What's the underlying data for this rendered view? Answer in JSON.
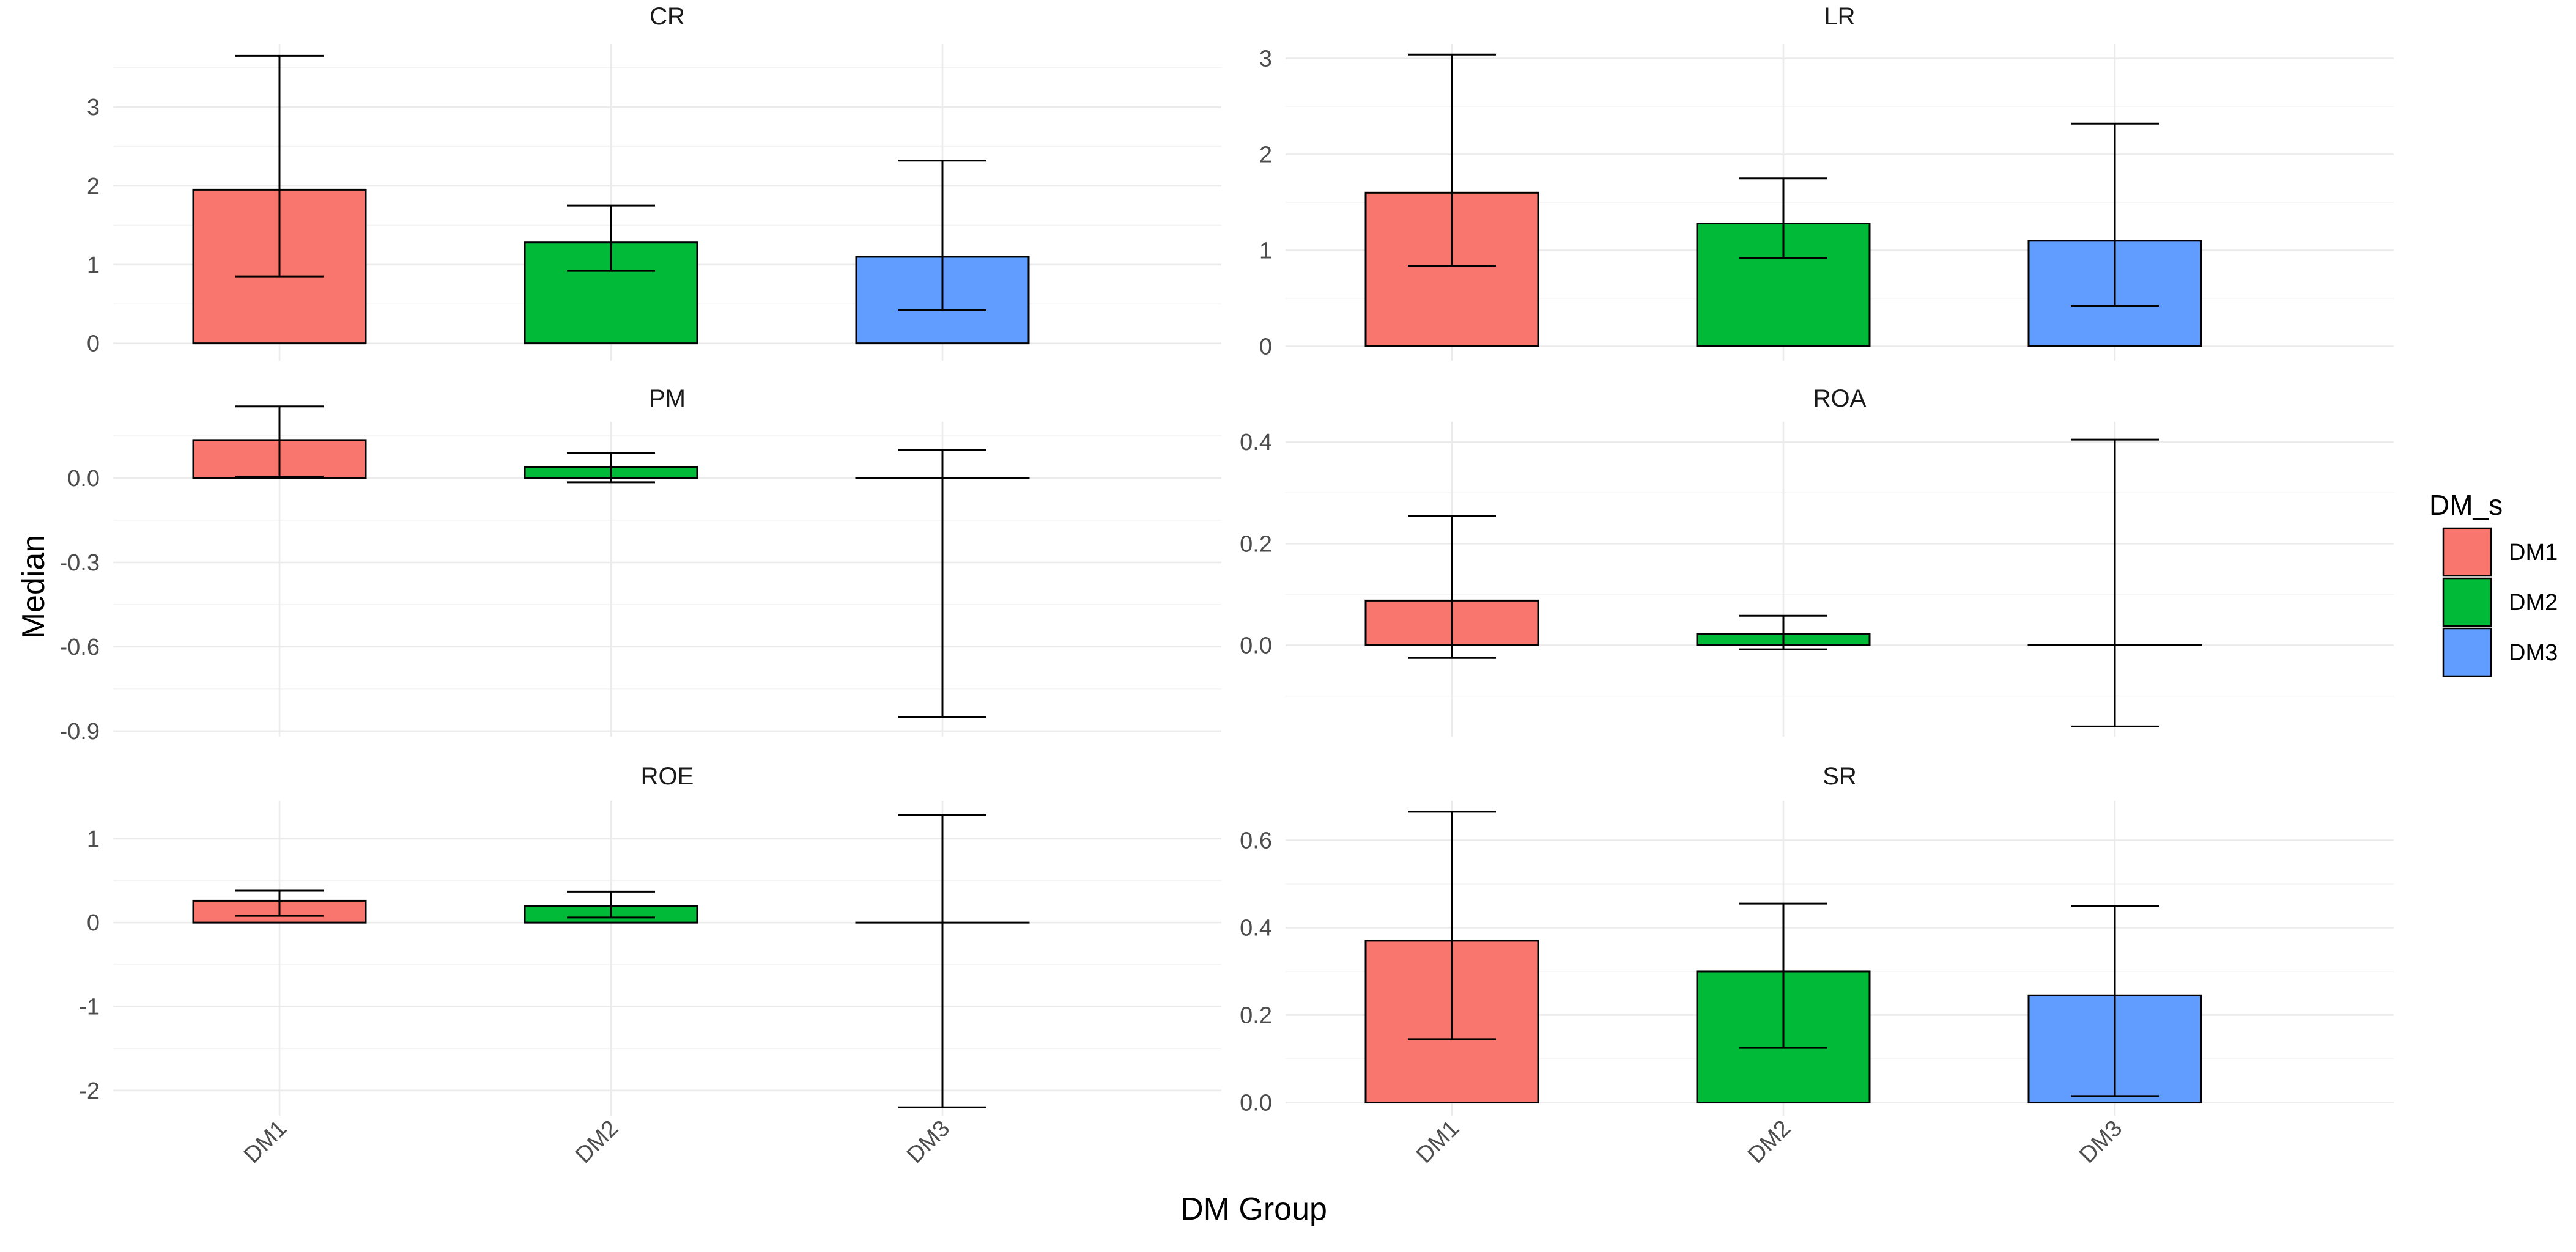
{
  "chart_data": {
    "type": "bar",
    "facet_layout": "3 rows x 2 columns",
    "xlabel": "DM Group",
    "ylabel": "Median",
    "categories": [
      "DM1",
      "DM2",
      "DM3"
    ],
    "colors": {
      "DM1": "#F8766D",
      "DM2": "#00BA38",
      "DM3": "#619CFF"
    },
    "legend": {
      "title": "DM_s",
      "entries": [
        "DM1",
        "DM2",
        "DM3"
      ],
      "position": "right"
    },
    "panels": [
      {
        "title": "CR",
        "ylim": [
          -0.22,
          3.8
        ],
        "yticks": [
          0,
          1,
          2,
          3
        ],
        "ytick_labels": [
          "0",
          "1",
          "2",
          "3"
        ],
        "values": [
          1.95,
          1.28,
          1.1
        ],
        "err_low": [
          0.85,
          0.92,
          0.42
        ],
        "err_high": [
          3.65,
          1.75,
          2.32
        ]
      },
      {
        "title": "LR",
        "ylim": [
          -0.15,
          3.15
        ],
        "yticks": [
          0,
          1,
          2,
          3
        ],
        "ytick_labels": [
          "0",
          "1",
          "2",
          "3"
        ],
        "values": [
          1.6,
          1.28,
          1.1
        ],
        "err_low": [
          0.84,
          0.92,
          0.42
        ],
        "err_high": [
          3.04,
          1.75,
          2.32
        ]
      },
      {
        "title": "PM",
        "ylim": [
          -0.92,
          0.2
        ],
        "yticks": [
          0,
          -0.3,
          -0.6,
          -0.9
        ],
        "ytick_labels": [
          "0.0",
          "-0.3",
          "-0.6",
          "-0.9"
        ],
        "values": [
          0.135,
          0.04,
          0.0
        ],
        "err_low": [
          0.005,
          -0.015,
          -0.85
        ],
        "err_high": [
          0.255,
          0.09,
          0.1
        ]
      },
      {
        "title": "ROA",
        "ylim": [
          -0.18,
          0.44
        ],
        "yticks": [
          0,
          0.2,
          0.4
        ],
        "ytick_labels": [
          "0.0",
          "0.2",
          "0.4"
        ],
        "values": [
          0.088,
          0.022,
          0.0
        ],
        "err_low": [
          -0.025,
          -0.008,
          -0.16
        ],
        "err_high": [
          0.255,
          0.058,
          0.405
        ]
      },
      {
        "title": "ROE",
        "ylim": [
          -2.3,
          1.45
        ],
        "yticks": [
          1,
          0,
          -1,
          -2
        ],
        "ytick_labels": [
          "1",
          "0",
          "-1",
          "-2"
        ],
        "values": [
          0.26,
          0.2,
          0.0
        ],
        "err_low": [
          0.08,
          0.06,
          -2.2
        ],
        "err_high": [
          0.38,
          0.37,
          1.28
        ]
      },
      {
        "title": "SR",
        "ylim": [
          -0.03,
          0.69
        ],
        "yticks": [
          0,
          0.2,
          0.4,
          0.6
        ],
        "ytick_labels": [
          "0.0",
          "0.2",
          "0.4",
          "0.6"
        ],
        "values": [
          0.37,
          0.3,
          0.245
        ],
        "err_low": [
          0.145,
          0.125,
          0.015
        ],
        "err_high": [
          0.665,
          0.455,
          0.45
        ]
      }
    ]
  }
}
